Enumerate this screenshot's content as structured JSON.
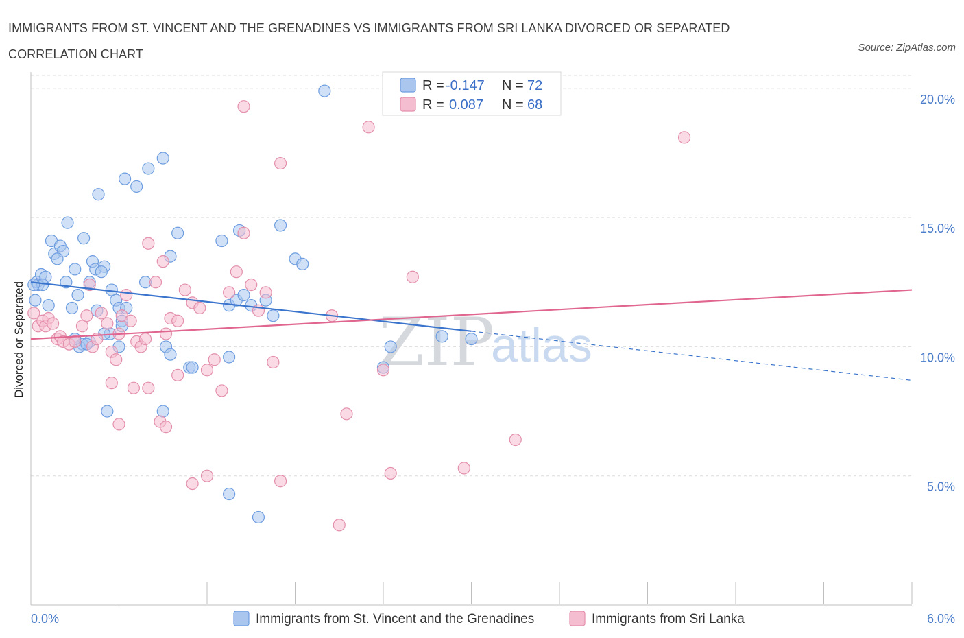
{
  "title": "IMMIGRANTS FROM ST. VINCENT AND THE GRENADINES VS IMMIGRANTS FROM SRI LANKA DIVORCED OR SEPARATED CORRELATION CHART",
  "source": "Source: ZipAtlas.com",
  "watermark": {
    "zip": "ZIP",
    "atlas": "atlas"
  },
  "legend_top": {
    "items": [
      {
        "r_label": "R =",
        "r_value": "-0.147",
        "n_label": "N =",
        "n_value": "72"
      },
      {
        "r_label": "R =",
        "r_value": "0.087",
        "n_label": "N =",
        "n_value": "68"
      }
    ]
  },
  "colors": {
    "blue_fill": "#aac6ef",
    "blue_stroke": "#6d9de0",
    "blue_line": "#3a74cc",
    "pink_fill": "#f5bdd0",
    "pink_stroke": "#e38fac",
    "pink_line": "#e06690",
    "grid": "#dcdcdc",
    "tick_text": "#4a7cc9"
  },
  "chart_data": {
    "type": "scatter",
    "ylabel": "Divorced or Separated",
    "xlim": [
      0,
      6
    ],
    "ylim": [
      0,
      20.5
    ],
    "x_tick_labels": [
      {
        "value": 0,
        "label": "0.0%"
      },
      {
        "value": 6,
        "label": "6.0%"
      }
    ],
    "y_tick_labels": [
      {
        "value": 5,
        "label": "5.0%"
      },
      {
        "value": 10,
        "label": "10.0%"
      },
      {
        "value": 15,
        "label": "15.0%"
      },
      {
        "value": 20,
        "label": "20.0%"
      }
    ],
    "series": [
      {
        "name": "Immigrants from St. Vincent and the Grenadines",
        "color": "blue",
        "trend": {
          "x0": 0,
          "y0": 12.5,
          "x1": 3.0,
          "y1": 10.6,
          "dash_x1": 6.0,
          "dash_y1": 8.7
        },
        "points": [
          [
            0.04,
            12.5
          ],
          [
            0.07,
            12.8
          ],
          [
            0.05,
            12.4
          ],
          [
            0.1,
            12.7
          ],
          [
            0.08,
            12.4
          ],
          [
            0.03,
            11.8
          ],
          [
            0.12,
            11.6
          ],
          [
            0.14,
            14.1
          ],
          [
            0.16,
            13.6
          ],
          [
            0.2,
            13.9
          ],
          [
            0.22,
            13.7
          ],
          [
            0.18,
            13.4
          ],
          [
            0.24,
            12.5
          ],
          [
            0.25,
            14.8
          ],
          [
            0.3,
            13.0
          ],
          [
            0.32,
            12.0
          ],
          [
            0.28,
            11.5
          ],
          [
            0.36,
            14.2
          ],
          [
            0.4,
            12.5
          ],
          [
            0.42,
            13.3
          ],
          [
            0.44,
            13.0
          ],
          [
            0.5,
            13.1
          ],
          [
            0.48,
            12.9
          ],
          [
            0.45,
            11.4
          ],
          [
            0.55,
            12.2
          ],
          [
            0.58,
            11.8
          ],
          [
            0.6,
            11.5
          ],
          [
            0.62,
            11.0
          ],
          [
            0.65,
            11.5
          ],
          [
            0.54,
            10.5
          ],
          [
            0.6,
            10.0
          ],
          [
            0.5,
            10.5
          ],
          [
            0.4,
            10.2
          ],
          [
            0.35,
            10.1
          ],
          [
            0.33,
            10.0
          ],
          [
            0.38,
            10.1
          ],
          [
            0.3,
            10.3
          ],
          [
            0.62,
            10.8
          ],
          [
            0.46,
            15.9
          ],
          [
            0.64,
            16.5
          ],
          [
            0.72,
            16.2
          ],
          [
            0.8,
            16.9
          ],
          [
            0.9,
            17.3
          ],
          [
            0.78,
            12.5
          ],
          [
            0.95,
            13.5
          ],
          [
            0.92,
            10.0
          ],
          [
            0.95,
            9.7
          ],
          [
            1.08,
            9.2
          ],
          [
            1.1,
            9.2
          ],
          [
            1.0,
            14.4
          ],
          [
            1.3,
            14.1
          ],
          [
            1.35,
            11.6
          ],
          [
            1.4,
            11.8
          ],
          [
            1.45,
            12.0
          ],
          [
            1.5,
            11.6
          ],
          [
            1.35,
            9.6
          ],
          [
            1.42,
            14.5
          ],
          [
            1.6,
            11.8
          ],
          [
            1.65,
            11.2
          ],
          [
            1.7,
            14.7
          ],
          [
            1.8,
            13.4
          ],
          [
            1.85,
            13.2
          ],
          [
            2.0,
            19.9
          ],
          [
            2.45,
            10.0
          ],
          [
            2.8,
            10.4
          ],
          [
            3.0,
            10.3
          ],
          [
            2.4,
            9.2
          ],
          [
            0.52,
            7.5
          ],
          [
            0.9,
            7.5
          ],
          [
            1.35,
            4.3
          ],
          [
            1.55,
            3.4
          ],
          [
            0.02,
            12.4
          ]
        ]
      },
      {
        "name": "Immigrants from Sri Lanka",
        "color": "pink",
        "trend": {
          "x0": 0,
          "y0": 10.3,
          "x1": 6.0,
          "y1": 12.2
        },
        "points": [
          [
            0.02,
            11.3
          ],
          [
            0.05,
            10.8
          ],
          [
            0.08,
            11.0
          ],
          [
            0.1,
            10.8
          ],
          [
            0.12,
            11.1
          ],
          [
            0.15,
            10.9
          ],
          [
            0.18,
            10.3
          ],
          [
            0.2,
            10.4
          ],
          [
            0.22,
            10.2
          ],
          [
            0.26,
            10.1
          ],
          [
            0.3,
            10.2
          ],
          [
            0.35,
            10.8
          ],
          [
            0.38,
            11.2
          ],
          [
            0.4,
            12.4
          ],
          [
            0.42,
            10.0
          ],
          [
            0.45,
            10.3
          ],
          [
            0.48,
            11.3
          ],
          [
            0.52,
            10.9
          ],
          [
            0.55,
            9.8
          ],
          [
            0.58,
            9.5
          ],
          [
            0.6,
            10.5
          ],
          [
            0.62,
            11.2
          ],
          [
            0.65,
            12.0
          ],
          [
            0.68,
            11.0
          ],
          [
            0.72,
            10.2
          ],
          [
            0.75,
            10.0
          ],
          [
            0.78,
            10.3
          ],
          [
            0.8,
            14.0
          ],
          [
            0.85,
            12.5
          ],
          [
            0.9,
            13.3
          ],
          [
            0.92,
            10.5
          ],
          [
            0.95,
            11.1
          ],
          [
            1.0,
            11.0
          ],
          [
            1.05,
            12.2
          ],
          [
            1.1,
            11.7
          ],
          [
            1.15,
            11.5
          ],
          [
            1.2,
            9.1
          ],
          [
            1.25,
            9.5
          ],
          [
            1.3,
            8.3
          ],
          [
            1.35,
            12.1
          ],
          [
            1.4,
            12.9
          ],
          [
            1.45,
            14.4
          ],
          [
            1.5,
            12.4
          ],
          [
            1.55,
            11.4
          ],
          [
            1.6,
            12.1
          ],
          [
            1.65,
            9.4
          ],
          [
            1.7,
            17.1
          ],
          [
            1.45,
            19.3
          ],
          [
            2.05,
            11.2
          ],
          [
            2.15,
            7.4
          ],
          [
            2.3,
            18.5
          ],
          [
            2.45,
            5.1
          ],
          [
            2.6,
            12.7
          ],
          [
            2.95,
            5.3
          ],
          [
            3.3,
            6.4
          ],
          [
            4.45,
            18.1
          ],
          [
            0.55,
            8.6
          ],
          [
            0.7,
            8.4
          ],
          [
            0.8,
            8.4
          ],
          [
            0.88,
            7.1
          ],
          [
            0.92,
            6.9
          ],
          [
            0.6,
            7.0
          ],
          [
            1.1,
            4.7
          ],
          [
            1.2,
            5.0
          ],
          [
            1.7,
            4.8
          ],
          [
            2.1,
            3.1
          ],
          [
            1.0,
            8.9
          ],
          [
            2.4,
            9.1
          ]
        ]
      }
    ]
  }
}
